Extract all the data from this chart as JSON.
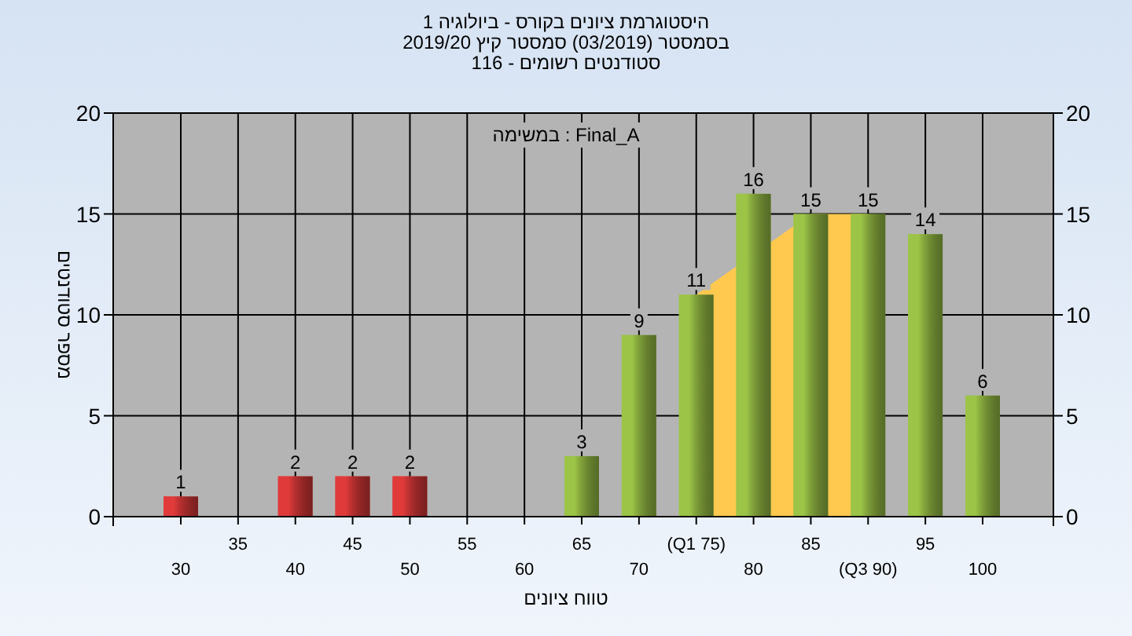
{
  "chart_data": {
    "type": "bar",
    "title": "היסטוגרמת ציונים בקורס - ביולוגיה 1",
    "subtitle": "בסמסטר (03/2019) סמסטר קיץ 2019/20\nסטודנטים רשומים - 116",
    "xlabel": "טווח ציונים",
    "ylabel": "מספר סטודנטים",
    "annotations": [
      "במשימה : Final_A"
    ],
    "categories": [
      "30",
      "35",
      "40",
      "45",
      "50",
      "55",
      "60",
      "65",
      "70",
      "(Q1 75)",
      "80",
      "85",
      "(Q3 90)",
      "95",
      "100"
    ],
    "series": [
      {
        "type": "area",
        "color": "#ffc94f",
        "values": [
          null,
          null,
          null,
          null,
          null,
          null,
          null,
          null,
          null,
          11,
          null,
          15,
          15,
          null,
          null
        ]
      },
      {
        "colors": [
          "#e03a3a",
          "#e03a3a",
          "#e03a3a",
          "#e03a3a",
          "#e03a3a",
          "#e03a3a",
          "#e03a3a",
          "#9cc447",
          "#9cc447",
          "#9cc447",
          "#9cc447",
          "#9cc447",
          "#9cc447",
          "#9cc447",
          "#9cc447"
        ],
        "values": [
          1,
          0,
          2,
          2,
          2,
          0,
          0,
          3,
          9,
          11,
          16,
          15,
          15,
          14,
          6
        ],
        "value_labels": [
          "1",
          null,
          "2",
          "2",
          "2",
          null,
          null,
          "3",
          "9",
          "11",
          "16",
          "15",
          "15",
          "14",
          "6"
        ]
      }
    ],
    "ylim": [
      0,
      20
    ],
    "yticks": [
      0,
      5,
      10,
      15,
      20
    ],
    "y2lim": [
      0,
      20
    ],
    "y2ticks": [
      0,
      5,
      10,
      15,
      20
    ],
    "grid": true
  }
}
